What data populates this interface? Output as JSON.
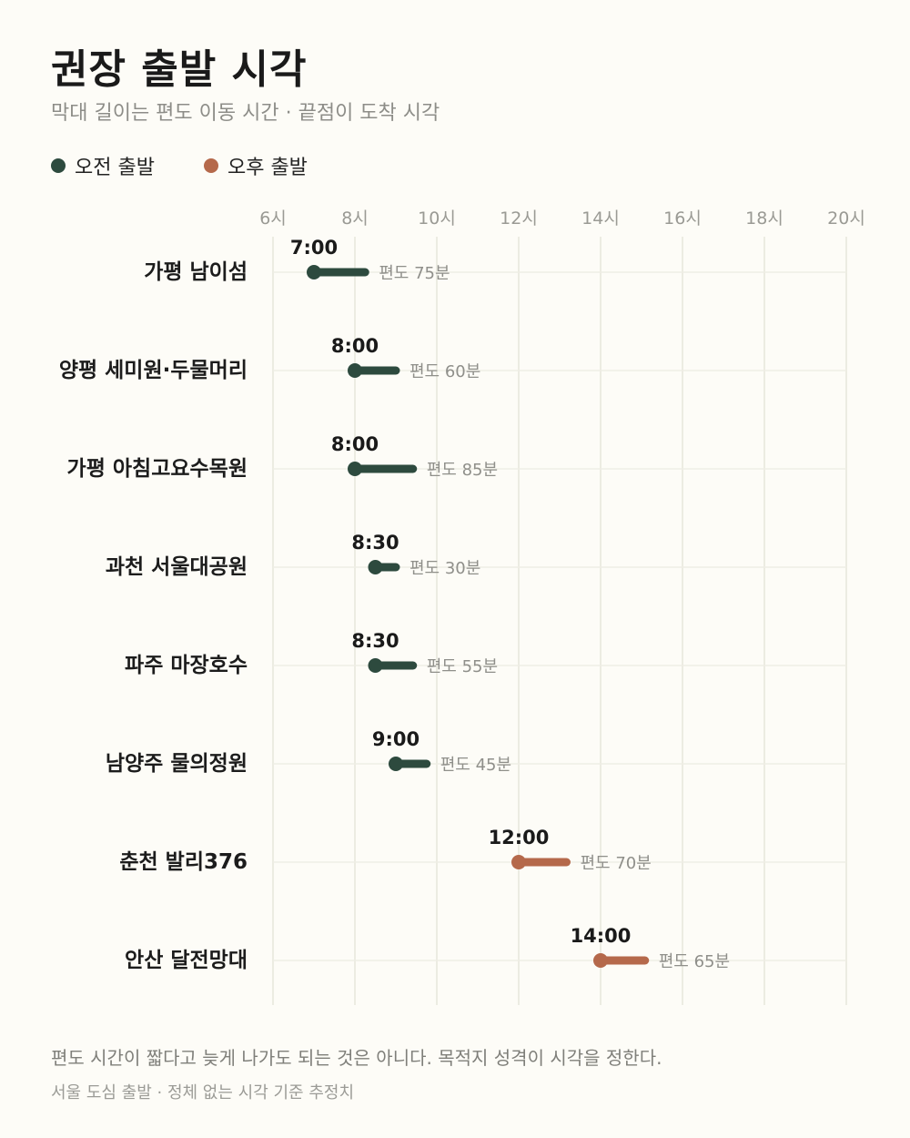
{
  "title": "권장 출발 시각",
  "subtitle": "막대 길이는 편도 이동 시간 · 끝점이 도착 시각",
  "legend": [
    {
      "label": "오전 출발",
      "color": "#2d4a3e"
    },
    {
      "label": "오후 출발",
      "color": "#b5694b"
    }
  ],
  "footnote": "편도 시간이 짧다고 늦게 나가도 되는 것은 아니다. 목적지 성격이 시각을 정한다.",
  "source": "서울 도심 출발 · 정체 없는 시각 기준 추정치",
  "chart_data": {
    "type": "bar",
    "orientation": "horizontal-range",
    "x_ticks": [
      6,
      8,
      10,
      12,
      14,
      16,
      18,
      20
    ],
    "x_tick_labels": [
      "6시",
      "8시",
      "10시",
      "12시",
      "14시",
      "16시",
      "18시",
      "20시"
    ],
    "xlim": [
      6,
      20
    ],
    "grid": true,
    "colors": {
      "am": "#2d4a3e",
      "pm": "#b5694b"
    },
    "rows": [
      {
        "name": "가평 남이섬",
        "depart": 7.0,
        "depart_label": "7:00",
        "minutes": 75,
        "duration_label": "편도 75분",
        "period": "am"
      },
      {
        "name": "양평 세미원·두물머리",
        "depart": 8.0,
        "depart_label": "8:00",
        "minutes": 60,
        "duration_label": "편도 60분",
        "period": "am"
      },
      {
        "name": "가평 아침고요수목원",
        "depart": 8.0,
        "depart_label": "8:00",
        "minutes": 85,
        "duration_label": "편도 85분",
        "period": "am"
      },
      {
        "name": "과천 서울대공원",
        "depart": 8.5,
        "depart_label": "8:30",
        "minutes": 30,
        "duration_label": "편도 30분",
        "period": "am"
      },
      {
        "name": "파주 마장호수",
        "depart": 8.5,
        "depart_label": "8:30",
        "minutes": 55,
        "duration_label": "편도 55분",
        "period": "am"
      },
      {
        "name": "남양주 물의정원",
        "depart": 9.0,
        "depart_label": "9:00",
        "minutes": 45,
        "duration_label": "편도 45분",
        "period": "am"
      },
      {
        "name": "춘천 발리376",
        "depart": 12.0,
        "depart_label": "12:00",
        "minutes": 70,
        "duration_label": "편도 70분",
        "period": "pm"
      },
      {
        "name": "안산 달전망대",
        "depart": 14.0,
        "depart_label": "14:00",
        "minutes": 65,
        "duration_label": "편도 65분",
        "period": "pm"
      }
    ]
  }
}
